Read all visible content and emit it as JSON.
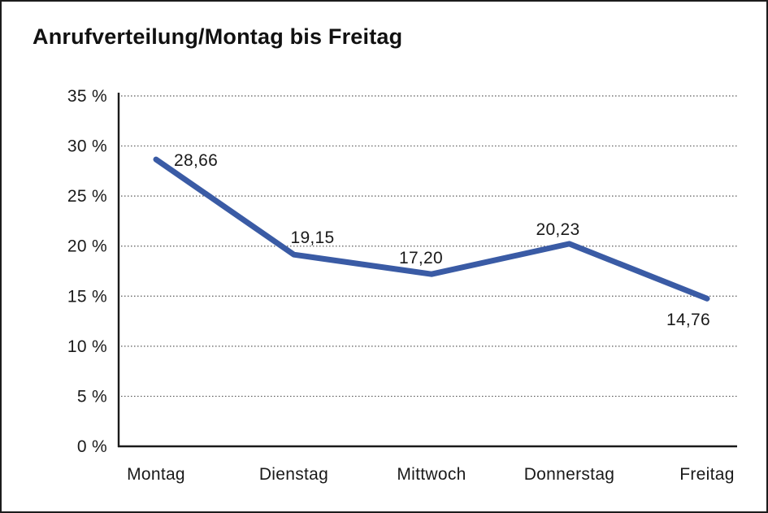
{
  "chart_data": {
    "type": "line",
    "title": "Anrufverteilung/Montag bis Freitag",
    "categories": [
      "Montag",
      "Dienstag",
      "Mittwoch",
      "Donnerstag",
      "Freitag"
    ],
    "values": [
      28.66,
      19.15,
      17.2,
      20.23,
      14.76
    ],
    "value_labels": [
      "28,66",
      "19,15",
      "17,20",
      "20,23",
      "14,76"
    ],
    "series_name": "Anrufverteilung",
    "xlabel": "",
    "ylabel": "",
    "ylim": [
      0,
      35
    ],
    "ytick_step": 5,
    "ytick_labels": [
      "0 %",
      "5 %",
      "10 %",
      "15 %",
      "20 %",
      "25 %",
      "30 %",
      "35 %"
    ],
    "grid": "horizontal-dotted",
    "legend": "none",
    "colors": {
      "line": "#3A5BA5",
      "axis": "#1a1a1a",
      "gridline": "#5a5a5a",
      "text": "#1a1a1a",
      "background": "#ffffff"
    }
  }
}
